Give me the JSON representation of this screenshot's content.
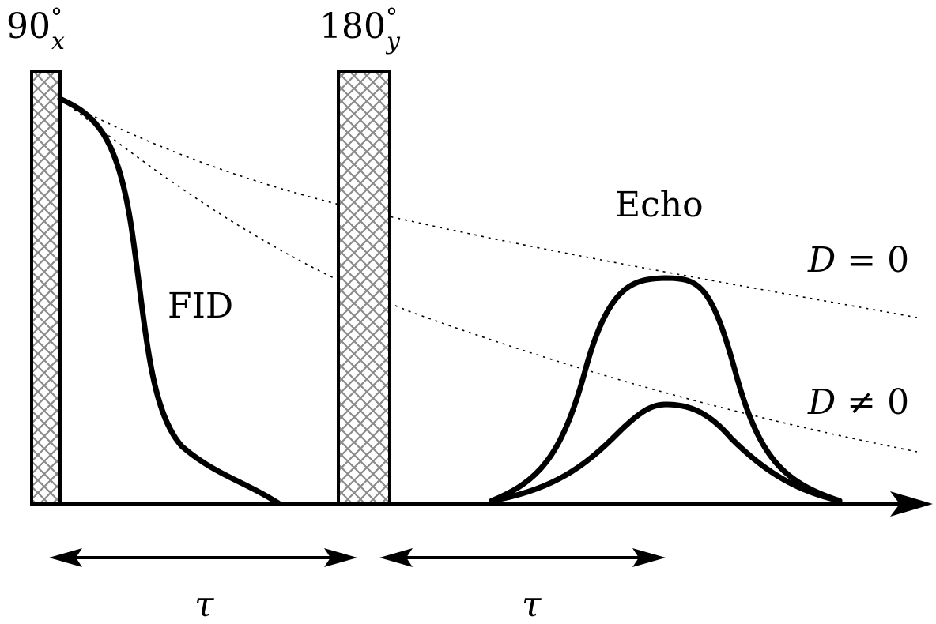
{
  "pulses": [
    {
      "angle": "90",
      "degree": "°",
      "phase": "x"
    },
    {
      "angle": "180",
      "degree": "°",
      "phase": "y"
    }
  ],
  "labels": {
    "fid": "FID",
    "echo": "Echo",
    "d_zero": {
      "symbol": "D",
      "relation": " = 0"
    },
    "d_nonzero": {
      "symbol": "D",
      "relation": " ≠ 0"
    }
  },
  "intervals": [
    {
      "label": "τ"
    },
    {
      "label": "τ"
    }
  ],
  "colors": {
    "ink": "#000000",
    "background": "#ffffff"
  }
}
